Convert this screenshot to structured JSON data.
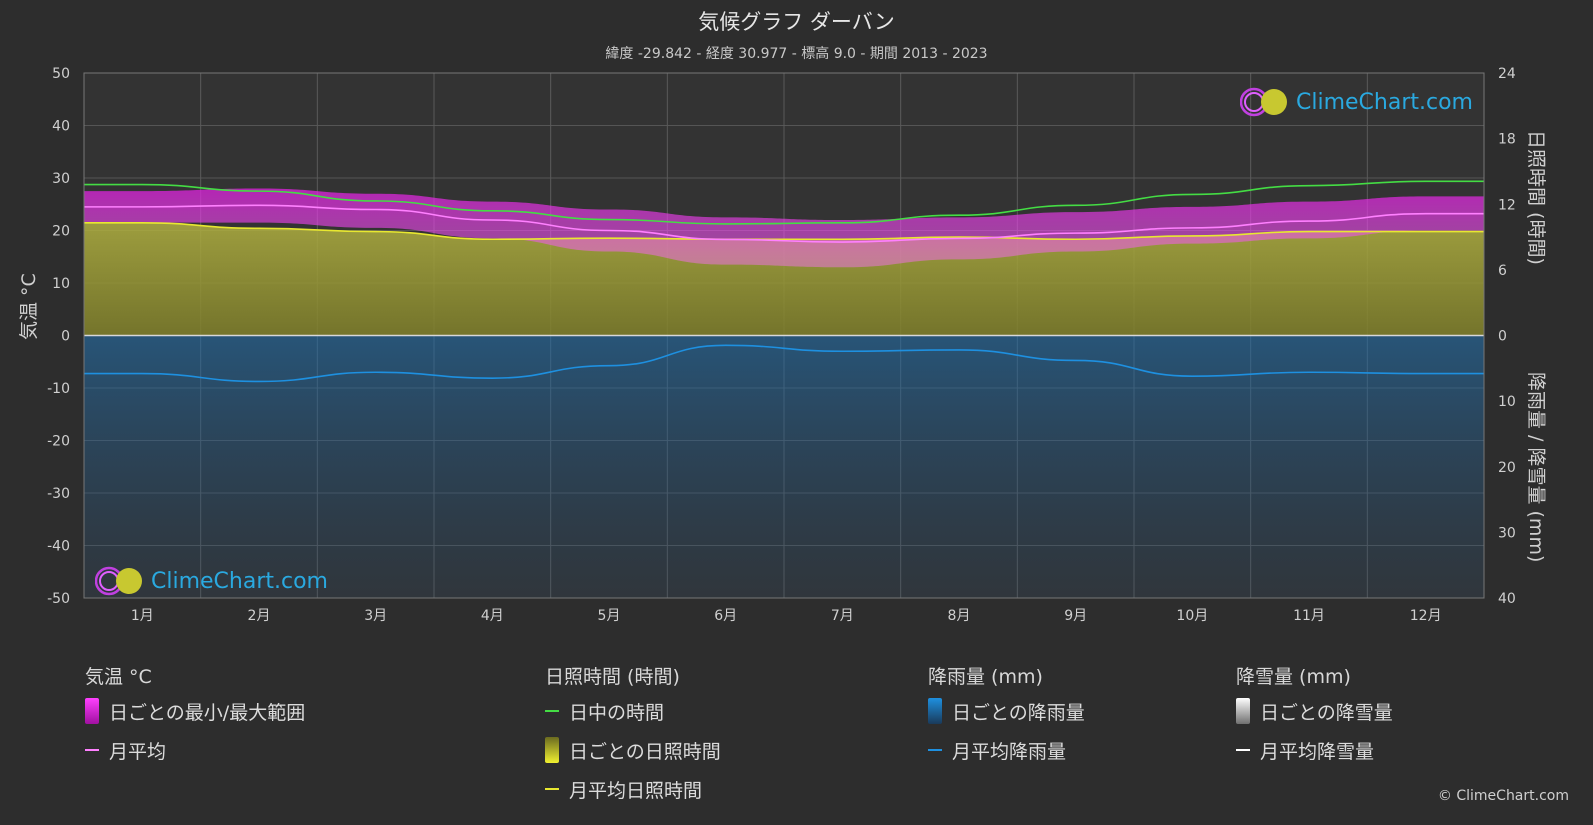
{
  "title": "気候グラフ ダーバン",
  "subtitle": "緯度 -29.842 - 経度 30.977 - 標高 9.0 - 期間 2013 - 2023",
  "colors": {
    "background": "#2d2d2d",
    "daylight": "#44dd44",
    "sunshine_avg": "#e8e830",
    "temp_avg": "#ff80ff",
    "temp_range": "#d020d0",
    "rain": "#1e90e0",
    "snow_avg": "#ffffff",
    "sunshine_fill": "#a8a838"
  },
  "chart_data": {
    "type": "line",
    "months": [
      "1月",
      "2月",
      "3月",
      "4月",
      "5月",
      "6月",
      "7月",
      "8月",
      "9月",
      "10月",
      "11月",
      "12月"
    ],
    "left_axis": {
      "title": "気温 °C",
      "range": [
        -50,
        50
      ],
      "ticks": [
        "50",
        "40",
        "30",
        "20",
        "10",
        "0",
        "-10",
        "-20",
        "-30",
        "-40",
        "-50"
      ]
    },
    "right_axis_top": {
      "title": "日照時間 (時間)",
      "range": [
        0,
        24
      ],
      "ticks": [
        "24",
        "18",
        "12",
        "6",
        "0"
      ]
    },
    "right_axis_bottom": {
      "title": "降雨量 / 降雪量 (mm)",
      "range": [
        0,
        40
      ],
      "ticks": [
        "0",
        "10",
        "20",
        "30",
        "40"
      ]
    },
    "series": [
      {
        "name": "日中の時間",
        "unit": "hours",
        "values": [
          13.8,
          13.2,
          12.3,
          11.4,
          10.6,
          10.2,
          10.3,
          11.0,
          11.9,
          12.9,
          13.7,
          14.1
        ]
      },
      {
        "name": "月平均日照時間",
        "unit": "hours",
        "values": [
          10.3,
          9.8,
          9.5,
          8.8,
          8.9,
          8.8,
          8.8,
          9.0,
          8.8,
          9.1,
          9.5,
          9.5
        ]
      },
      {
        "name": "月平均",
        "unit": "°C",
        "values": [
          24.5,
          24.8,
          24.0,
          22.0,
          20.0,
          18.3,
          17.8,
          18.5,
          19.5,
          20.5,
          21.8,
          23.2
        ]
      },
      {
        "name": "日ごとの最小/最大範囲 (max)",
        "unit": "°C",
        "values": [
          27.5,
          28.0,
          27.0,
          25.5,
          24.0,
          22.5,
          22.0,
          22.5,
          23.5,
          24.5,
          25.5,
          26.5
        ]
      },
      {
        "name": "日ごとの最小/最大範囲 (min)",
        "unit": "°C",
        "values": [
          21.5,
          21.5,
          20.5,
          18.5,
          16.0,
          13.5,
          13.0,
          14.5,
          16.0,
          17.5,
          18.5,
          20.0
        ]
      },
      {
        "name": "月平均降雨量",
        "unit": "mm",
        "values": [
          5.8,
          7.0,
          5.6,
          6.5,
          4.6,
          1.5,
          2.4,
          2.2,
          3.8,
          6.2,
          5.6,
          5.8
        ]
      }
    ]
  },
  "legend": {
    "groups": [
      {
        "heading": "気温 °C",
        "items": [
          {
            "label": "日ごとの最小/最大範囲",
            "kind": "box",
            "color": "#d020d0"
          },
          {
            "label": "月平均",
            "kind": "line",
            "color": "#ff80ff"
          }
        ]
      },
      {
        "heading": "日照時間 (時間)",
        "items": [
          {
            "label": "日中の時間",
            "kind": "line",
            "color": "#44dd44"
          },
          {
            "label": "日ごとの日照時間",
            "kind": "box",
            "color": "#c8c830"
          },
          {
            "label": "月平均日照時間",
            "kind": "line",
            "color": "#e8e830"
          }
        ]
      },
      {
        "heading": "降雨量 (mm)",
        "items": [
          {
            "label": "日ごとの降雨量",
            "kind": "box",
            "color": "#1e90e0"
          },
          {
            "label": "月平均降雨量",
            "kind": "line",
            "color": "#1e90e0"
          }
        ]
      },
      {
        "heading": "降雪量 (mm)",
        "items": [
          {
            "label": "日ごとの降雪量",
            "kind": "box",
            "color": "#e0e0e0"
          },
          {
            "label": "月平均降雪量",
            "kind": "line",
            "color": "#ffffff"
          }
        ]
      }
    ]
  },
  "logo_text": "ClimeChart.com",
  "copyright": "© ClimeChart.com"
}
